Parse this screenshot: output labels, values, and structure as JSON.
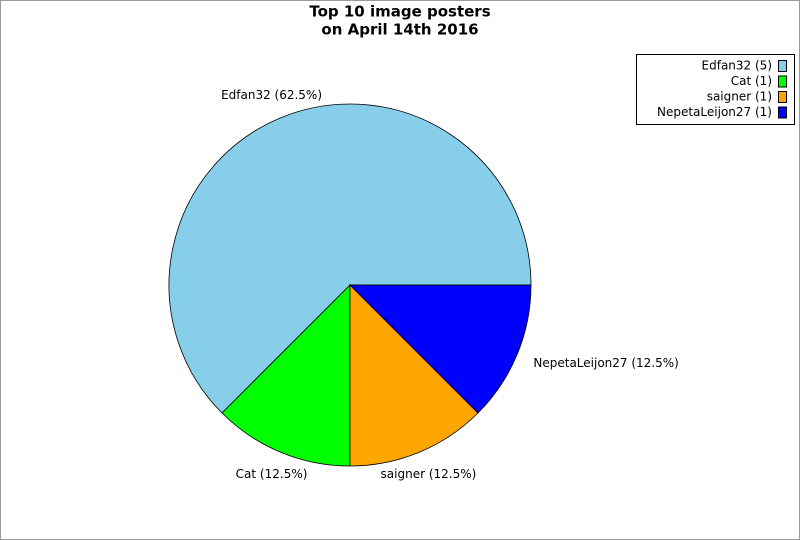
{
  "chart_data": {
    "type": "pie",
    "title": [
      "Top 10 image posters",
      "on April 14th 2016"
    ],
    "values": [
      5,
      1,
      1,
      1
    ],
    "value_labels": [
      "Edfan32 (62.5%)",
      "Cat (12.5%)",
      "saigner (12.5%)",
      "NepetaLeijon27 (12.5%)"
    ],
    "legend_labels": [
      "Edfan32 (5)",
      "Cat (1)",
      "saigner (1)",
      "NepetaLeijon27 (1)"
    ],
    "colors": [
      "#87ceeb",
      "#00ff00",
      "#ffa500",
      "#0000ff"
    ],
    "legend": "top-right"
  }
}
